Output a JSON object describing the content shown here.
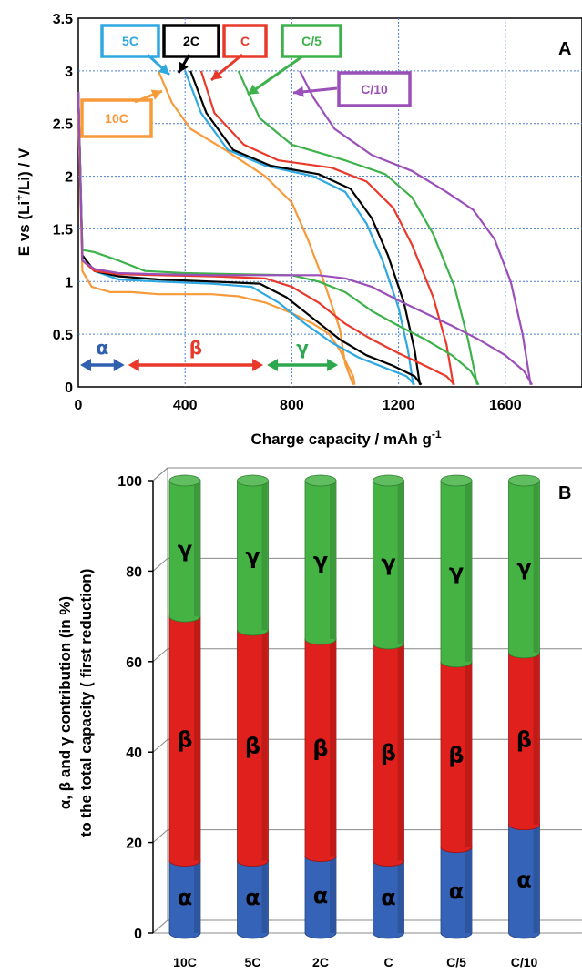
{
  "chart_data": [
    {
      "type": "line",
      "panel_label": "A",
      "xlabel": "Charge capacity / mAh g",
      "xlabel_sup": "-1",
      "ylabel_parts": [
        "E vs (Li",
        "+",
        "/Li) / V"
      ],
      "xlim": [
        0,
        1800
      ],
      "ylim": [
        0,
        3.5
      ],
      "xticks": [
        "0",
        "400",
        "800",
        "1200",
        "1600"
      ],
      "xtick_values": [
        0,
        400,
        800,
        1200,
        1600
      ],
      "yticks": [
        "0",
        "0.5",
        "1",
        "1.5",
        "2",
        "2.5",
        "3",
        "3.5"
      ],
      "ytick_values": [
        0,
        0.5,
        1,
        1.5,
        2,
        2.5,
        3,
        3.5
      ],
      "grid": true,
      "series": [
        {
          "name": "10C",
          "color": "#f79a3a",
          "discharge": [
            [
              0,
              2.6
            ],
            [
              15,
              1.1
            ],
            [
              50,
              0.95
            ],
            [
              120,
              0.9
            ],
            [
              200,
              0.9
            ],
            [
              300,
              0.88
            ],
            [
              400,
              0.88
            ],
            [
              500,
              0.88
            ],
            [
              600,
              0.86
            ],
            [
              700,
              0.8
            ],
            [
              800,
              0.7
            ],
            [
              880,
              0.6
            ],
            [
              940,
              0.5
            ],
            [
              980,
              0.35
            ],
            [
              1010,
              0.2
            ],
            [
              1030,
              0.1
            ],
            [
              1035,
              0.02
            ]
          ],
          "charge": [
            [
              1030,
              0.02
            ],
            [
              1000,
              0.22
            ],
            [
              980,
              0.55
            ],
            [
              920,
              1.0
            ],
            [
              860,
              1.4
            ],
            [
              800,
              1.75
            ],
            [
              700,
              2.0
            ],
            [
              550,
              2.25
            ],
            [
              420,
              2.45
            ],
            [
              350,
              2.7
            ],
            [
              300,
              3.0
            ]
          ]
        },
        {
          "name": "5C",
          "color": "#2fa8e0",
          "discharge": [
            [
              0,
              2.8
            ],
            [
              15,
              1.25
            ],
            [
              60,
              1.1
            ],
            [
              150,
              1.02
            ],
            [
              300,
              1.0
            ],
            [
              500,
              0.98
            ],
            [
              650,
              0.95
            ],
            [
              750,
              0.8
            ],
            [
              850,
              0.6
            ],
            [
              950,
              0.42
            ],
            [
              1050,
              0.28
            ],
            [
              1150,
              0.18
            ],
            [
              1230,
              0.1
            ],
            [
              1260,
              0.02
            ]
          ],
          "charge": [
            [
              1255,
              0.02
            ],
            [
              1235,
              0.35
            ],
            [
              1200,
              0.75
            ],
            [
              1140,
              1.2
            ],
            [
              1080,
              1.55
            ],
            [
              1000,
              1.85
            ],
            [
              880,
              2.0
            ],
            [
              700,
              2.1
            ],
            [
              560,
              2.25
            ],
            [
              460,
              2.6
            ],
            [
              400,
              3.0
            ]
          ]
        },
        {
          "name": "2C",
          "color": "#000000",
          "discharge": [
            [
              0,
              2.8
            ],
            [
              15,
              1.25
            ],
            [
              60,
              1.1
            ],
            [
              150,
              1.05
            ],
            [
              300,
              1.02
            ],
            [
              500,
              1.0
            ],
            [
              680,
              0.98
            ],
            [
              780,
              0.85
            ],
            [
              880,
              0.65
            ],
            [
              980,
              0.45
            ],
            [
              1080,
              0.3
            ],
            [
              1180,
              0.2
            ],
            [
              1260,
              0.1
            ],
            [
              1285,
              0.02
            ]
          ],
          "charge": [
            [
              1280,
              0.02
            ],
            [
              1260,
              0.35
            ],
            [
              1220,
              0.8
            ],
            [
              1160,
              1.25
            ],
            [
              1100,
              1.6
            ],
            [
              1020,
              1.88
            ],
            [
              900,
              2.02
            ],
            [
              720,
              2.1
            ],
            [
              580,
              2.25
            ],
            [
              480,
              2.6
            ],
            [
              420,
              3.0
            ]
          ]
        },
        {
          "name": "C",
          "color": "#e8392b",
          "discharge": [
            [
              0,
              2.8
            ],
            [
              15,
              1.2
            ],
            [
              60,
              1.1
            ],
            [
              150,
              1.07
            ],
            [
              300,
              1.06
            ],
            [
              500,
              1.05
            ],
            [
              700,
              1.03
            ],
            [
              800,
              0.95
            ],
            [
              900,
              0.8
            ],
            [
              1000,
              0.6
            ],
            [
              1100,
              0.45
            ],
            [
              1200,
              0.32
            ],
            [
              1300,
              0.2
            ],
            [
              1380,
              0.1
            ],
            [
              1410,
              0.02
            ]
          ],
          "charge": [
            [
              1405,
              0.02
            ],
            [
              1380,
              0.4
            ],
            [
              1330,
              0.85
            ],
            [
              1250,
              1.35
            ],
            [
              1180,
              1.7
            ],
            [
              1080,
              1.95
            ],
            [
              950,
              2.08
            ],
            [
              750,
              2.15
            ],
            [
              620,
              2.3
            ],
            [
              510,
              2.6
            ],
            [
              460,
              3.0
            ]
          ]
        },
        {
          "name": "C/5",
          "color": "#3db24b",
          "discharge": [
            [
              0,
              2.8
            ],
            [
              15,
              1.3
            ],
            [
              60,
              1.28
            ],
            [
              150,
              1.2
            ],
            [
              250,
              1.1
            ],
            [
              400,
              1.08
            ],
            [
              600,
              1.07
            ],
            [
              800,
              1.06
            ],
            [
              900,
              1.0
            ],
            [
              1000,
              0.9
            ],
            [
              1100,
              0.72
            ],
            [
              1200,
              0.58
            ],
            [
              1300,
              0.45
            ],
            [
              1400,
              0.3
            ],
            [
              1470,
              0.15
            ],
            [
              1500,
              0.02
            ]
          ],
          "charge": [
            [
              1495,
              0.02
            ],
            [
              1460,
              0.45
            ],
            [
              1410,
              0.95
            ],
            [
              1330,
              1.45
            ],
            [
              1250,
              1.8
            ],
            [
              1150,
              2.02
            ],
            [
              1000,
              2.15
            ],
            [
              800,
              2.3
            ],
            [
              680,
              2.55
            ],
            [
              600,
              3.0
            ]
          ]
        },
        {
          "name": "C/10",
          "color": "#9b4fb8",
          "discharge": [
            [
              0,
              2.8
            ],
            [
              15,
              1.2
            ],
            [
              60,
              1.12
            ],
            [
              150,
              1.08
            ],
            [
              300,
              1.07
            ],
            [
              500,
              1.06
            ],
            [
              700,
              1.06
            ],
            [
              900,
              1.06
            ],
            [
              1000,
              1.03
            ],
            [
              1100,
              0.95
            ],
            [
              1200,
              0.82
            ],
            [
              1300,
              0.7
            ],
            [
              1400,
              0.58
            ],
            [
              1500,
              0.45
            ],
            [
              1600,
              0.3
            ],
            [
              1670,
              0.15
            ],
            [
              1700,
              0.02
            ]
          ],
          "charge": [
            [
              1695,
              0.02
            ],
            [
              1665,
              0.5
            ],
            [
              1620,
              1.0
            ],
            [
              1560,
              1.4
            ],
            [
              1480,
              1.68
            ],
            [
              1380,
              1.85
            ],
            [
              1250,
              2.05
            ],
            [
              1100,
              2.2
            ],
            [
              960,
              2.45
            ],
            [
              880,
              2.75
            ],
            [
              830,
              3.0
            ]
          ]
        }
      ],
      "regions": [
        {
          "name": "α",
          "from": 0,
          "to": 180,
          "color": "#3060b0"
        },
        {
          "name": "β",
          "from": 180,
          "to": 700,
          "color": "#e8392b"
        },
        {
          "name": "γ",
          "from": 700,
          "to": 980,
          "color": "#2ea84f"
        }
      ]
    },
    {
      "type": "bar",
      "stacked": true,
      "panel_label": "B",
      "ylabel_line1": "α, β and γ contribution (in %)",
      "ylabel_line2": "to the total capacity ( first reduction)",
      "categories": [
        "10C",
        "5C",
        "2C",
        "C",
        "C/5",
        "C/10"
      ],
      "ylim": [
        0,
        100
      ],
      "yticks": [
        "0",
        "20",
        "40",
        "60",
        "80",
        "100"
      ],
      "ytick_values": [
        0,
        20,
        40,
        60,
        80,
        100
      ],
      "series": [
        {
          "name": "α",
          "color": "#3563b8",
          "values": [
            16,
            16,
            17,
            16,
            19,
            24
          ]
        },
        {
          "name": "β",
          "color": "#e0201c",
          "values": [
            54,
            51,
            48,
            48,
            41,
            38
          ]
        },
        {
          "name": "γ",
          "color": "#45b244",
          "values": [
            30,
            33,
            35,
            36,
            40,
            38
          ]
        }
      ]
    }
  ]
}
